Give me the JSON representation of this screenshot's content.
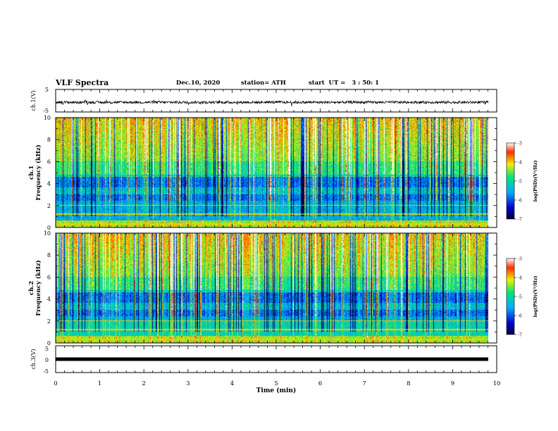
{
  "header": {
    "title": "VLF Spectra",
    "date": "Dec.10, 2020",
    "station": "station= ATH",
    "start": "start  UT =   3 : 50: 1"
  },
  "colors": {
    "trace": "#000000",
    "frame": "#000000",
    "background": "#ffffff"
  },
  "chart_data": [
    {
      "type": "line",
      "ylabel": "ch.1(V)",
      "ylim": [
        -5,
        5
      ],
      "yticks": [
        "5",
        "-5"
      ],
      "xlim": [
        0,
        10
      ],
      "description_value": "noisy waveform centered near -0.7 V",
      "series": [
        {
          "values_center": -0.7,
          "values_noise": 0.6
        }
      ]
    },
    {
      "type": "heatmap",
      "ylabel": "ch.1\nFrequency (kHz)",
      "ylim": [
        0,
        10
      ],
      "yticks": [
        "0",
        "2",
        "4",
        "6",
        "8",
        "10"
      ],
      "xlim": [
        0,
        10
      ],
      "colorbar": {
        "label": "log(PSD)(V²/Hz)",
        "range": [
          -7,
          -3
        ],
        "ticks": [
          "-3",
          "-4",
          "-5",
          "-6",
          "-7"
        ]
      }
    },
    {
      "type": "heatmap",
      "ylabel": "ch.2\nFrequency (kHz)",
      "ylim": [
        0,
        10
      ],
      "yticks": [
        "0",
        "2",
        "4",
        "6",
        "8",
        "10"
      ],
      "xlim": [
        0,
        10
      ],
      "colorbar": {
        "label": "log(PSD)(V²/Hz)",
        "range": [
          -7,
          -3
        ],
        "ticks": [
          "-3",
          "-4",
          "-5",
          "-6",
          "-7"
        ]
      }
    },
    {
      "type": "line",
      "ylabel": "ch.3(V)",
      "ylim": [
        -5,
        5
      ],
      "yticks": [
        "5",
        "0",
        "-5"
      ],
      "xlim": [
        0,
        10
      ],
      "series": [
        {
          "values_center": 0,
          "values_noise": 0.15
        }
      ]
    }
  ],
  "xaxis": {
    "label": "Time (min)",
    "ticks": [
      "0",
      "1",
      "2",
      "3",
      "4",
      "5",
      "6",
      "7",
      "8",
      "9",
      "10"
    ]
  },
  "labels": {
    "ch1v": "ch.1(V)",
    "ch1f": "ch.1",
    "ch1f2": "Frequency (kHz)",
    "ch2f": "ch.2",
    "ch2f2": "Frequency (kHz)",
    "ch3v": "ch.3(V)",
    "cbar": "log(PSD)(V²/Hz)"
  }
}
